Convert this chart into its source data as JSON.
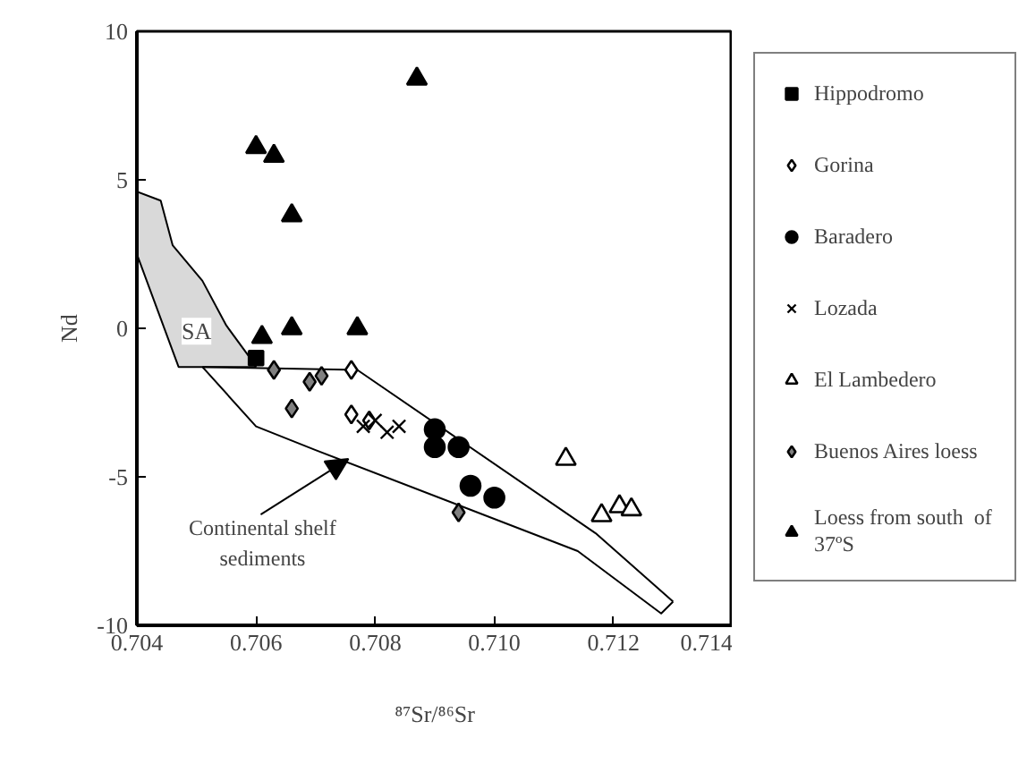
{
  "chart_data": {
    "type": "scatter",
    "xlabel": "⁸⁷Sr/⁸⁶Sr",
    "ylabel": "Nd",
    "xlim": [
      0.704,
      0.714
    ],
    "ylim": [
      -10,
      10
    ],
    "xticks": [
      {
        "value": 0.704,
        "label": "0.704"
      },
      {
        "value": 0.706,
        "label": "0.706"
      },
      {
        "value": 0.708,
        "label": "0.708"
      },
      {
        "value": 0.71,
        "label": "0.710"
      },
      {
        "value": 0.712,
        "label": "0.712"
      },
      {
        "value": 0.714,
        "label": "0.714"
      }
    ],
    "yticks": [
      -10,
      -5,
      0,
      5,
      10
    ],
    "grid": false,
    "legend": "right",
    "series": [
      {
        "type": "area",
        "color": "#d9d9d9",
        "x": [
          0.704,
          0.7044,
          0.7046,
          0.7051,
          0.7055,
          0.7059,
          0.706,
          0.7047,
          0.704
        ],
        "values": [
          4.6,
          4.3,
          2.8,
          1.6,
          0.1,
          -1.0,
          -1.3,
          -1.3,
          2.5
        ]
      },
      {
        "type": "line",
        "color": "#000000",
        "x": [
          0.7051,
          0.7077,
          0.7117,
          0.713
        ],
        "values": [
          -1.3,
          -1.4,
          -6.9,
          -9.2
        ]
      },
      {
        "type": "line",
        "color": "#000000",
        "x": [
          0.7051,
          0.706,
          0.707,
          0.7114,
          0.7128,
          0.713
        ],
        "values": [
          -1.3,
          -3.3,
          -4.1,
          -7.5,
          -9.6,
          -9.2
        ]
      },
      {
        "name": "Hippodromo",
        "marker": "square",
        "color": "#000000",
        "x": [
          0.706
        ],
        "values": [
          -1.0
        ]
      },
      {
        "name": "Gorina",
        "marker": "diamond",
        "color": "#ffffff",
        "x": [
          0.7076,
          0.7076,
          0.7079
        ],
        "values": [
          -1.4,
          -2.9,
          -3.1
        ]
      },
      {
        "name": "Baradero",
        "marker": "circle",
        "color": "#000000",
        "x": [
          0.709,
          0.709,
          0.7094,
          0.7096,
          0.71
        ],
        "values": [
          -3.4,
          -4.0,
          -4.0,
          -5.3,
          -5.7
        ]
      },
      {
        "name": "Lozada",
        "marker": "cross",
        "color": "#000000",
        "x": [
          0.7078,
          0.708,
          0.7082,
          0.7084
        ],
        "values": [
          -3.3,
          -3.1,
          -3.5,
          -3.3
        ]
      },
      {
        "name": "El Lambedero",
        "marker": "triangle",
        "color": "#ffffff",
        "x": [
          0.7112,
          0.7118,
          0.7121,
          0.7123
        ],
        "values": [
          -4.4,
          -6.3,
          -6.0,
          -6.1
        ]
      },
      {
        "name": "Buenos Aires loess",
        "marker": "diamond",
        "color": "#808080",
        "x": [
          0.7063,
          0.7069,
          0.7071,
          0.7066,
          0.7094
        ],
        "values": [
          -1.4,
          -1.8,
          -1.6,
          -2.7,
          -6.2
        ]
      },
      {
        "name": "Loess from south  of 37ºS",
        "marker": "triangle",
        "color": "#000000",
        "x": [
          0.706,
          0.7063,
          0.7066,
          0.7066,
          0.7077,
          0.7061,
          0.7087
        ],
        "values": [
          6.1,
          5.8,
          3.8,
          0.0,
          0.0,
          -0.3,
          8.4
        ]
      }
    ],
    "annotations": [
      {
        "text": "SA",
        "x": 0.705,
        "y": -0.1
      },
      {
        "text": "Continental shelf sediments",
        "x": 0.70755,
        "y": -4.4
      }
    ]
  }
}
